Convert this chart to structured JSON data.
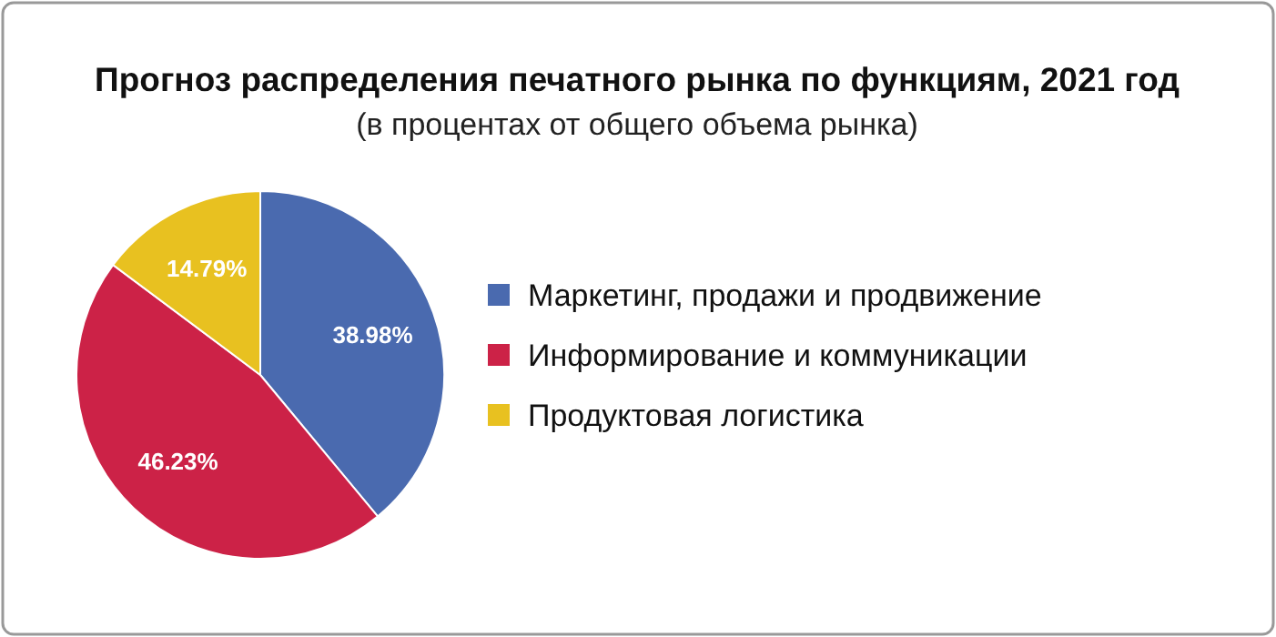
{
  "chart_data": {
    "type": "pie",
    "title": "Прогноз распределения печатного рынка по функциям, 2021 год",
    "subtitle": "(в процентах от общего объема рынка)",
    "categories": [
      "Маркетинг, продажи и продвижение",
      "Информирование и коммуникации",
      "Продуктовая логистика"
    ],
    "values": [
      38.98,
      46.23,
      14.79
    ],
    "colors": [
      "#4a6aaf",
      "#cc2247",
      "#e8c120"
    ],
    "value_labels": [
      "38.98%",
      "46.23%",
      "14.79%"
    ],
    "legend": "right"
  }
}
